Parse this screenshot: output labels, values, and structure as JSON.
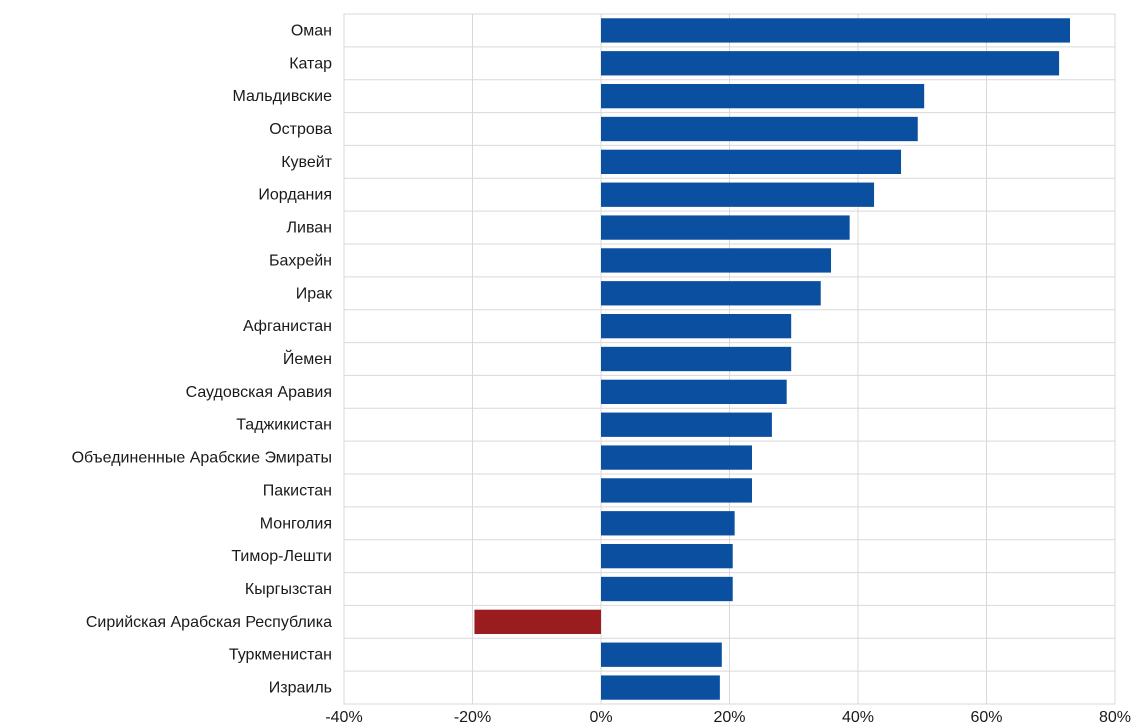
{
  "chart_data": {
    "type": "bar",
    "orientation": "horizontal",
    "title": "",
    "xlabel": "",
    "ylabel": "",
    "xlim": [
      -40,
      80
    ],
    "x_ticks": [
      "-40%",
      "-20%",
      "0%",
      "20%",
      "40%",
      "60%",
      "80%"
    ],
    "x_tick_values": [
      -40,
      -20,
      0,
      20,
      40,
      60,
      80
    ],
    "grid": "vertical",
    "legend": "none",
    "categories": [
      "Оман",
      "Катар",
      "Мальдивские",
      "Острова",
      "Кувейт",
      "Иордания",
      "Ливан",
      "Бахрейн",
      "Ирак",
      "Афганистан",
      "Йемен",
      "Саудовская Аравия",
      "Таджикистан",
      "Объединенные Арабские Эмираты",
      "Пакистан",
      "Монголия",
      "Тимор-Лешти",
      "Кыргызстан",
      "Сирийская Арабская Республика",
      "Туркменистан",
      "Израиль"
    ],
    "values": [
      73,
      71.3,
      50.3,
      49.3,
      46.7,
      42.5,
      38.7,
      35.8,
      34.2,
      29.6,
      29.6,
      28.9,
      26.6,
      23.5,
      23.5,
      20.8,
      20.5,
      20.5,
      -19.7,
      18.8,
      18.5
    ],
    "colors": {
      "positive": "#0b4fa0",
      "negative": "#9b1c1f"
    }
  }
}
